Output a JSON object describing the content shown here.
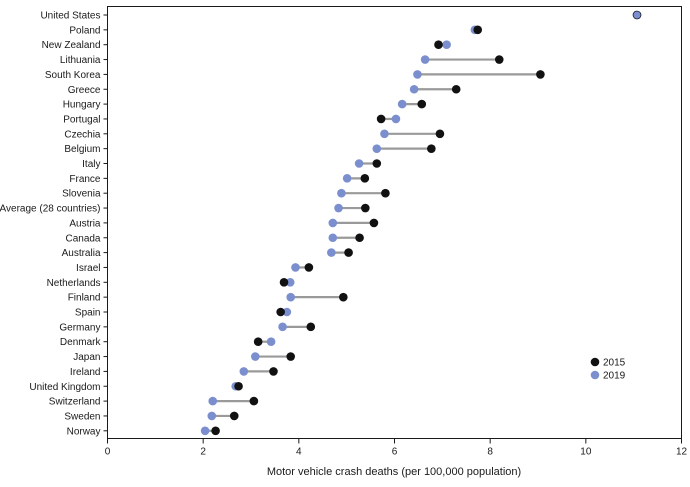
{
  "chart_data": {
    "type": "dumbbell",
    "xlabel": "Motor vehicle crash deaths (per 100,000 population)",
    "xlim": [
      0,
      12
    ],
    "xticks": [
      0,
      2,
      4,
      6,
      8,
      10,
      12
    ],
    "grid": false,
    "legend_position": "bottom-right",
    "categories": [
      "United States",
      "Poland",
      "New Zealand",
      "Lithuania",
      "South Korea",
      "Greece",
      "Hungary",
      "Portugal",
      "Czechia",
      "Belgium",
      "Italy",
      "France",
      "Slovenia",
      "Average (28 countries)",
      "Austria",
      "Canada",
      "Australia",
      "Israel",
      "Netherlands",
      "Finland",
      "Spain",
      "Germany",
      "Denmark",
      "Japan",
      "Ireland",
      "United Kingdom",
      "Switzerland",
      "Sweden",
      "Norway"
    ],
    "series": [
      {
        "name": "2015",
        "color": "#111111",
        "values": [
          11.07,
          7.74,
          6.92,
          8.19,
          9.05,
          7.29,
          6.57,
          5.72,
          6.95,
          6.77,
          5.63,
          5.38,
          5.81,
          5.39,
          5.57,
          5.27,
          5.04,
          4.21,
          3.69,
          4.93,
          3.62,
          4.25,
          3.15,
          3.83,
          3.47,
          2.74,
          3.06,
          2.65,
          2.26
        ]
      },
      {
        "name": "2019",
        "color": "#7b8fcf",
        "values": [
          11.07,
          7.68,
          7.09,
          6.64,
          6.48,
          6.41,
          6.16,
          6.03,
          5.79,
          5.63,
          5.26,
          5.01,
          4.89,
          4.83,
          4.71,
          4.71,
          4.68,
          3.93,
          3.82,
          3.83,
          3.75,
          3.66,
          3.42,
          3.09,
          2.85,
          2.68,
          2.2,
          2.18,
          2.04
        ]
      }
    ]
  }
}
